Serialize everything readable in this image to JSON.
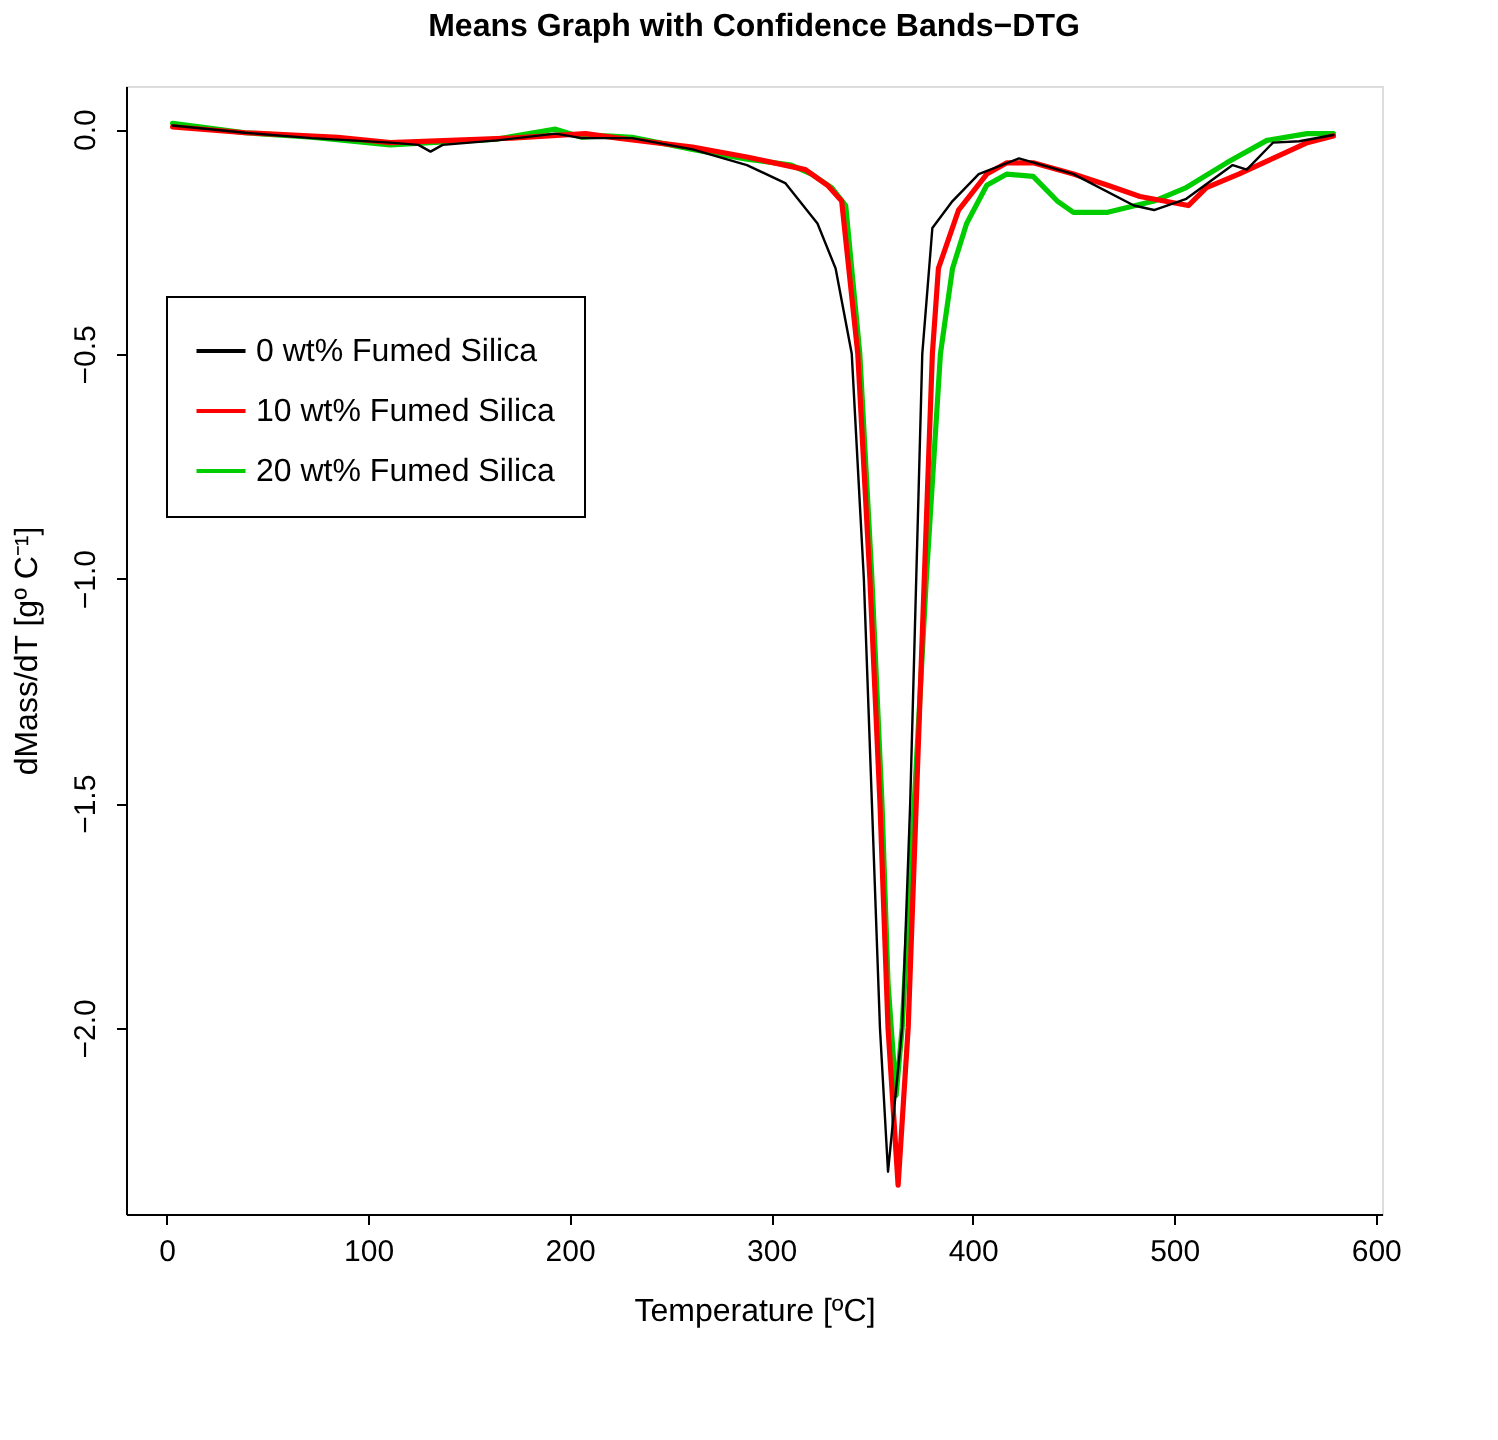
{
  "chart_data": {
    "type": "line",
    "title": "Means Graph with Confidence Bands−DTG",
    "xlabel": "Temperature [ºC]",
    "ylabel": "dMass/dT [gº C⁻¹]",
    "xlim": [
      -20.1,
      603.1
    ],
    "ylim": [
      -2.414,
      0.096
    ],
    "xticks": [
      0,
      100,
      200,
      300,
      400,
      500,
      600
    ],
    "yticks": [
      {
        "value": 0.0,
        "label": "0.0"
      },
      {
        "value": -0.5,
        "label": "−0.5"
      },
      {
        "value": -1.0,
        "label": "−1.0"
      },
      {
        "value": -1.5,
        "label": "−1.5"
      },
      {
        "value": -2.0,
        "label": "−2.0"
      }
    ],
    "grid": false,
    "legend": "left",
    "line_style": "solid",
    "marker": "none",
    "series": [
      {
        "name": "0 wt% Fumed Silica",
        "color": "#000000",
        "x": [
          3,
          39,
          72,
          111,
          125,
          131,
          137,
          164,
          193,
          206,
          231,
          261,
          288,
          307,
          323,
          332,
          340,
          346,
          350,
          354,
          358,
          365,
          369,
          372,
          375,
          380,
          390,
          403,
          423,
          450,
          480,
          490,
          506,
          529,
          536,
          549,
          562,
          579
        ],
        "values": [
          0.008,
          -0.008,
          -0.02,
          -0.03,
          -0.035,
          -0.05,
          -0.035,
          -0.025,
          -0.01,
          -0.02,
          -0.02,
          -0.045,
          -0.08,
          -0.12,
          -0.21,
          -0.31,
          -0.5,
          -1.0,
          -1.5,
          -2.0,
          -2.32,
          -2.0,
          -1.5,
          -1.0,
          -0.5,
          -0.22,
          -0.16,
          -0.1,
          -0.065,
          -0.1,
          -0.17,
          -0.18,
          -0.155,
          -0.08,
          -0.09,
          -0.03,
          -0.027,
          -0.013
        ]
      },
      {
        "name": "10 wt% Fumed Silica",
        "color": "#ff0000",
        "x": [
          3,
          39,
          85,
          111,
          171,
          208,
          224,
          261,
          288,
          317,
          328,
          335,
          343,
          349,
          354,
          358,
          363,
          368,
          372,
          376,
          380,
          383,
          393,
          407,
          417,
          430,
          450,
          467,
          483,
          507,
          516,
          532,
          549,
          566,
          579
        ],
        "values": [
          0.005,
          -0.008,
          -0.018,
          -0.03,
          -0.02,
          -0.01,
          -0.02,
          -0.04,
          -0.062,
          -0.09,
          -0.125,
          -0.16,
          -0.5,
          -1.0,
          -1.5,
          -2.0,
          -2.35,
          -2.0,
          -1.5,
          -1.0,
          -0.5,
          -0.31,
          -0.18,
          -0.1,
          -0.075,
          -0.075,
          -0.1,
          -0.125,
          -0.15,
          -0.17,
          -0.13,
          -0.1,
          -0.065,
          -0.03,
          -0.015
        ]
      },
      {
        "name": "20 wt% Fumed Silica",
        "color": "#00cd00",
        "x": [
          3,
          39,
          72,
          111,
          131,
          164,
          193,
          206,
          218,
          231,
          261,
          288,
          310,
          320,
          330,
          337,
          344,
          350,
          355,
          358,
          362,
          365,
          371,
          377,
          384,
          390,
          397,
          407,
          417,
          430,
          442,
          450,
          467,
          490,
          506,
          526,
          546,
          566,
          579
        ],
        "values": [
          0.013,
          -0.008,
          -0.018,
          -0.035,
          -0.03,
          -0.022,
          0.0,
          -0.018,
          -0.015,
          -0.018,
          -0.045,
          -0.067,
          -0.08,
          -0.1,
          -0.13,
          -0.17,
          -0.5,
          -1.0,
          -1.5,
          -1.9,
          -2.15,
          -2.0,
          -1.5,
          -1.0,
          -0.5,
          -0.31,
          -0.21,
          -0.125,
          -0.1,
          -0.105,
          -0.16,
          -0.185,
          -0.185,
          -0.16,
          -0.13,
          -0.075,
          -0.025,
          -0.01,
          -0.01
        ]
      }
    ]
  }
}
